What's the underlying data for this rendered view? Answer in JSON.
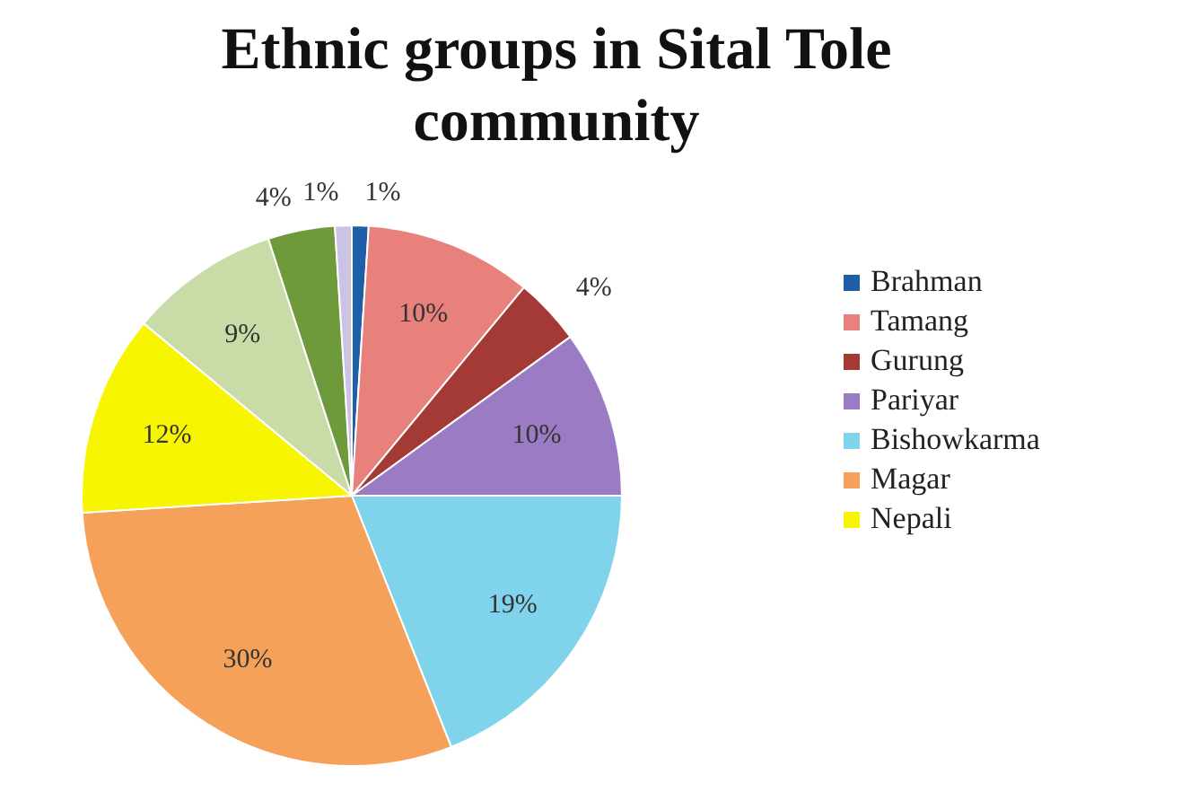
{
  "chart_data": {
    "type": "pie",
    "title": "Ethnic groups in Sital Tole community",
    "categories": [
      "Brahman",
      "Tamang",
      "Gurung",
      "Pariyar",
      "Bishowkarma",
      "Magar",
      "Nepali",
      null,
      null,
      null
    ],
    "values": [
      1,
      10,
      4,
      10,
      19,
      30,
      12,
      9,
      4,
      1
    ],
    "colors": [
      "#1f5fa8",
      "#e8807c",
      "#a33a35",
      "#9b7cc4",
      "#7fd3ea",
      "#f5a15a",
      "#f7f500",
      "#c9dba6",
      "#6e9a3c",
      "#cbc3e3"
    ],
    "value_labels": [
      "1%",
      "10%",
      "4%",
      "10%",
      "19%",
      "30%",
      "12%",
      "9%",
      "4%",
      "1%"
    ],
    "legend": "right"
  }
}
